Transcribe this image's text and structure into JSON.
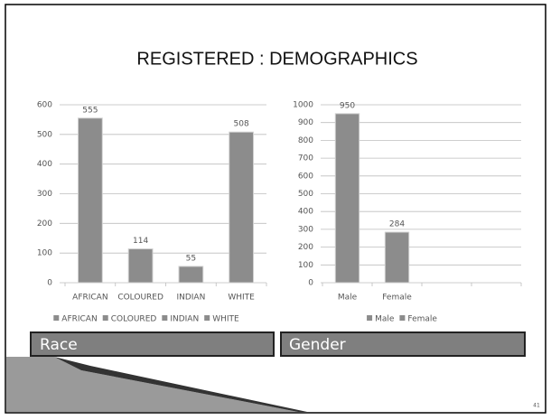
{
  "title": "REGISTERED : DEMOGRAPHICS",
  "captions": [
    "Race",
    "Gender"
  ],
  "page_number": "41",
  "chart_data": [
    {
      "type": "bar",
      "categories": [
        "AFRICAN",
        "COLOURED",
        "INDIAN",
        "WHITE"
      ],
      "values": [
        555,
        114,
        55,
        508
      ],
      "color": "#8c8c8c",
      "ylim": [
        0,
        600
      ],
      "yticks": [
        0,
        100,
        200,
        300,
        400,
        500,
        600
      ],
      "grid": true,
      "legend": [
        "AFRICAN",
        "COLOURED",
        "INDIAN",
        "WHITE"
      ]
    },
    {
      "type": "bar",
      "categories": [
        "Male",
        "Female",
        null,
        null
      ],
      "values": [
        950,
        284,
        null,
        null
      ],
      "color": "#8c8c8c",
      "ylim": [
        0,
        1000
      ],
      "yticks": [
        0,
        100,
        200,
        300,
        400,
        500,
        600,
        700,
        800,
        900,
        1000
      ],
      "grid": true,
      "legend": [
        "Male",
        "Female"
      ]
    }
  ]
}
